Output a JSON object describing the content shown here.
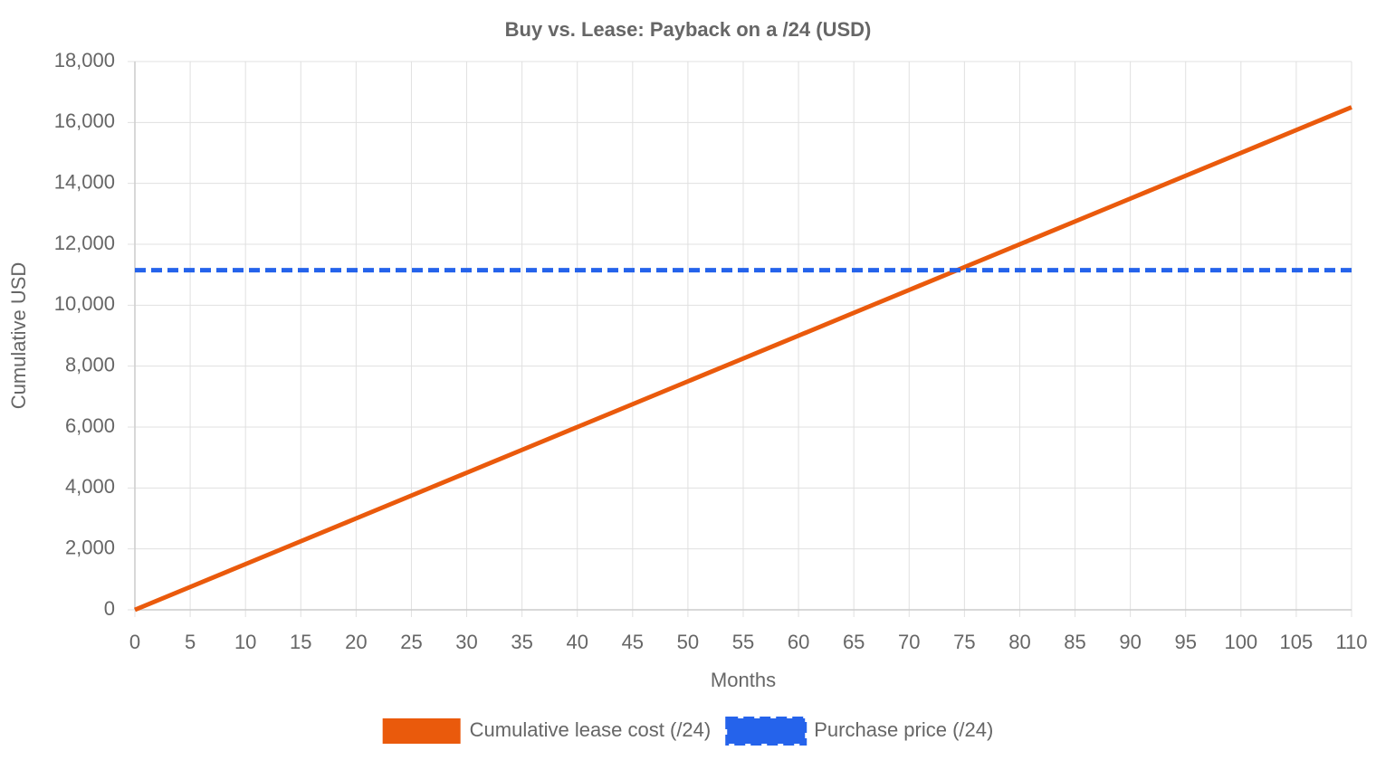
{
  "chart_data": {
    "type": "line",
    "title": "Buy vs. Lease: Payback on a /24 (USD)",
    "x_label": "Months",
    "y_label": "Cumulative USD",
    "x": [
      0,
      5,
      10,
      15,
      20,
      25,
      30,
      35,
      40,
      45,
      50,
      55,
      60,
      65,
      70,
      75,
      80,
      85,
      90,
      95,
      100,
      105,
      110
    ],
    "series": [
      {
        "name": "Cumulative lease cost (/24)",
        "color": "#ea5a0c",
        "dashed": false,
        "values": [
          0,
          750,
          1500,
          2250,
          3000,
          3750,
          4500,
          5250,
          6000,
          6750,
          7500,
          8250,
          9000,
          9750,
          10500,
          11250,
          12000,
          12750,
          13500,
          14250,
          15000,
          15750,
          16500
        ]
      },
      {
        "name": "Purchase price (/24)",
        "color": "#2563eb",
        "dashed": true,
        "values": [
          11150,
          11150,
          11150,
          11150,
          11150,
          11150,
          11150,
          11150,
          11150,
          11150,
          11150,
          11150,
          11150,
          11150,
          11150,
          11150,
          11150,
          11150,
          11150,
          11150,
          11150,
          11150,
          11150
        ]
      }
    ],
    "xlim": [
      0,
      110
    ],
    "xticks": [
      0,
      5,
      10,
      15,
      20,
      25,
      30,
      35,
      40,
      45,
      50,
      55,
      60,
      65,
      70,
      75,
      80,
      85,
      90,
      95,
      100,
      105,
      110
    ],
    "ylim": [
      0,
      18000
    ],
    "yticks": [
      0,
      {
        "value": 2000,
        "label": "2,000"
      },
      {
        "value": 4000,
        "label": "4,000"
      },
      {
        "value": 6000,
        "label": "6,000"
      },
      {
        "value": 8000,
        "label": "8,000"
      },
      {
        "value": 10000,
        "label": "10,000"
      },
      {
        "value": 12000,
        "label": "12,000"
      },
      {
        "value": 14000,
        "label": "14,000"
      },
      {
        "value": 16000,
        "label": "16,000"
      },
      {
        "value": 18000,
        "label": "18,000"
      }
    ],
    "grid": true,
    "legend": "bottom"
  }
}
